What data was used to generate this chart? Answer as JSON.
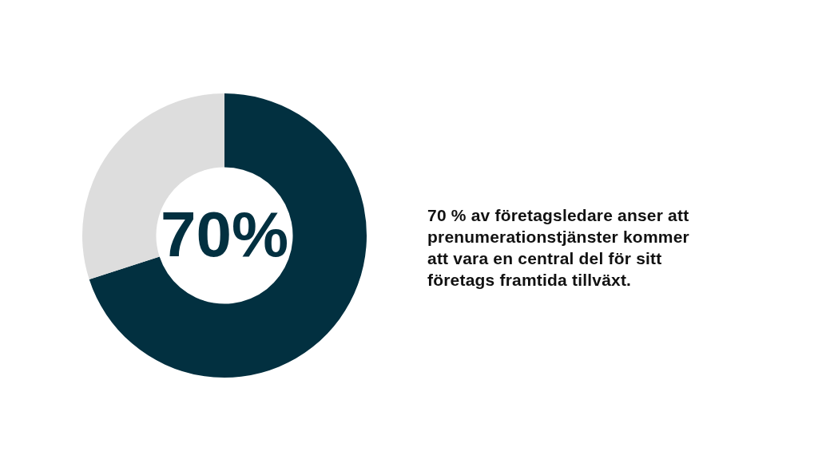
{
  "chart_data": {
    "type": "donut",
    "categories": [
      null,
      null
    ],
    "values": [
      70,
      30
    ],
    "colors": [
      "#023040",
      "#dddddd"
    ],
    "value_labels": [
      "70%",
      null
    ],
    "annotations": [
      "70 % av företagsledare anser att\nprenumerationstjänster kommer\natt vara en central del för sitt\nföretags framtida tillväxt."
    ]
  }
}
